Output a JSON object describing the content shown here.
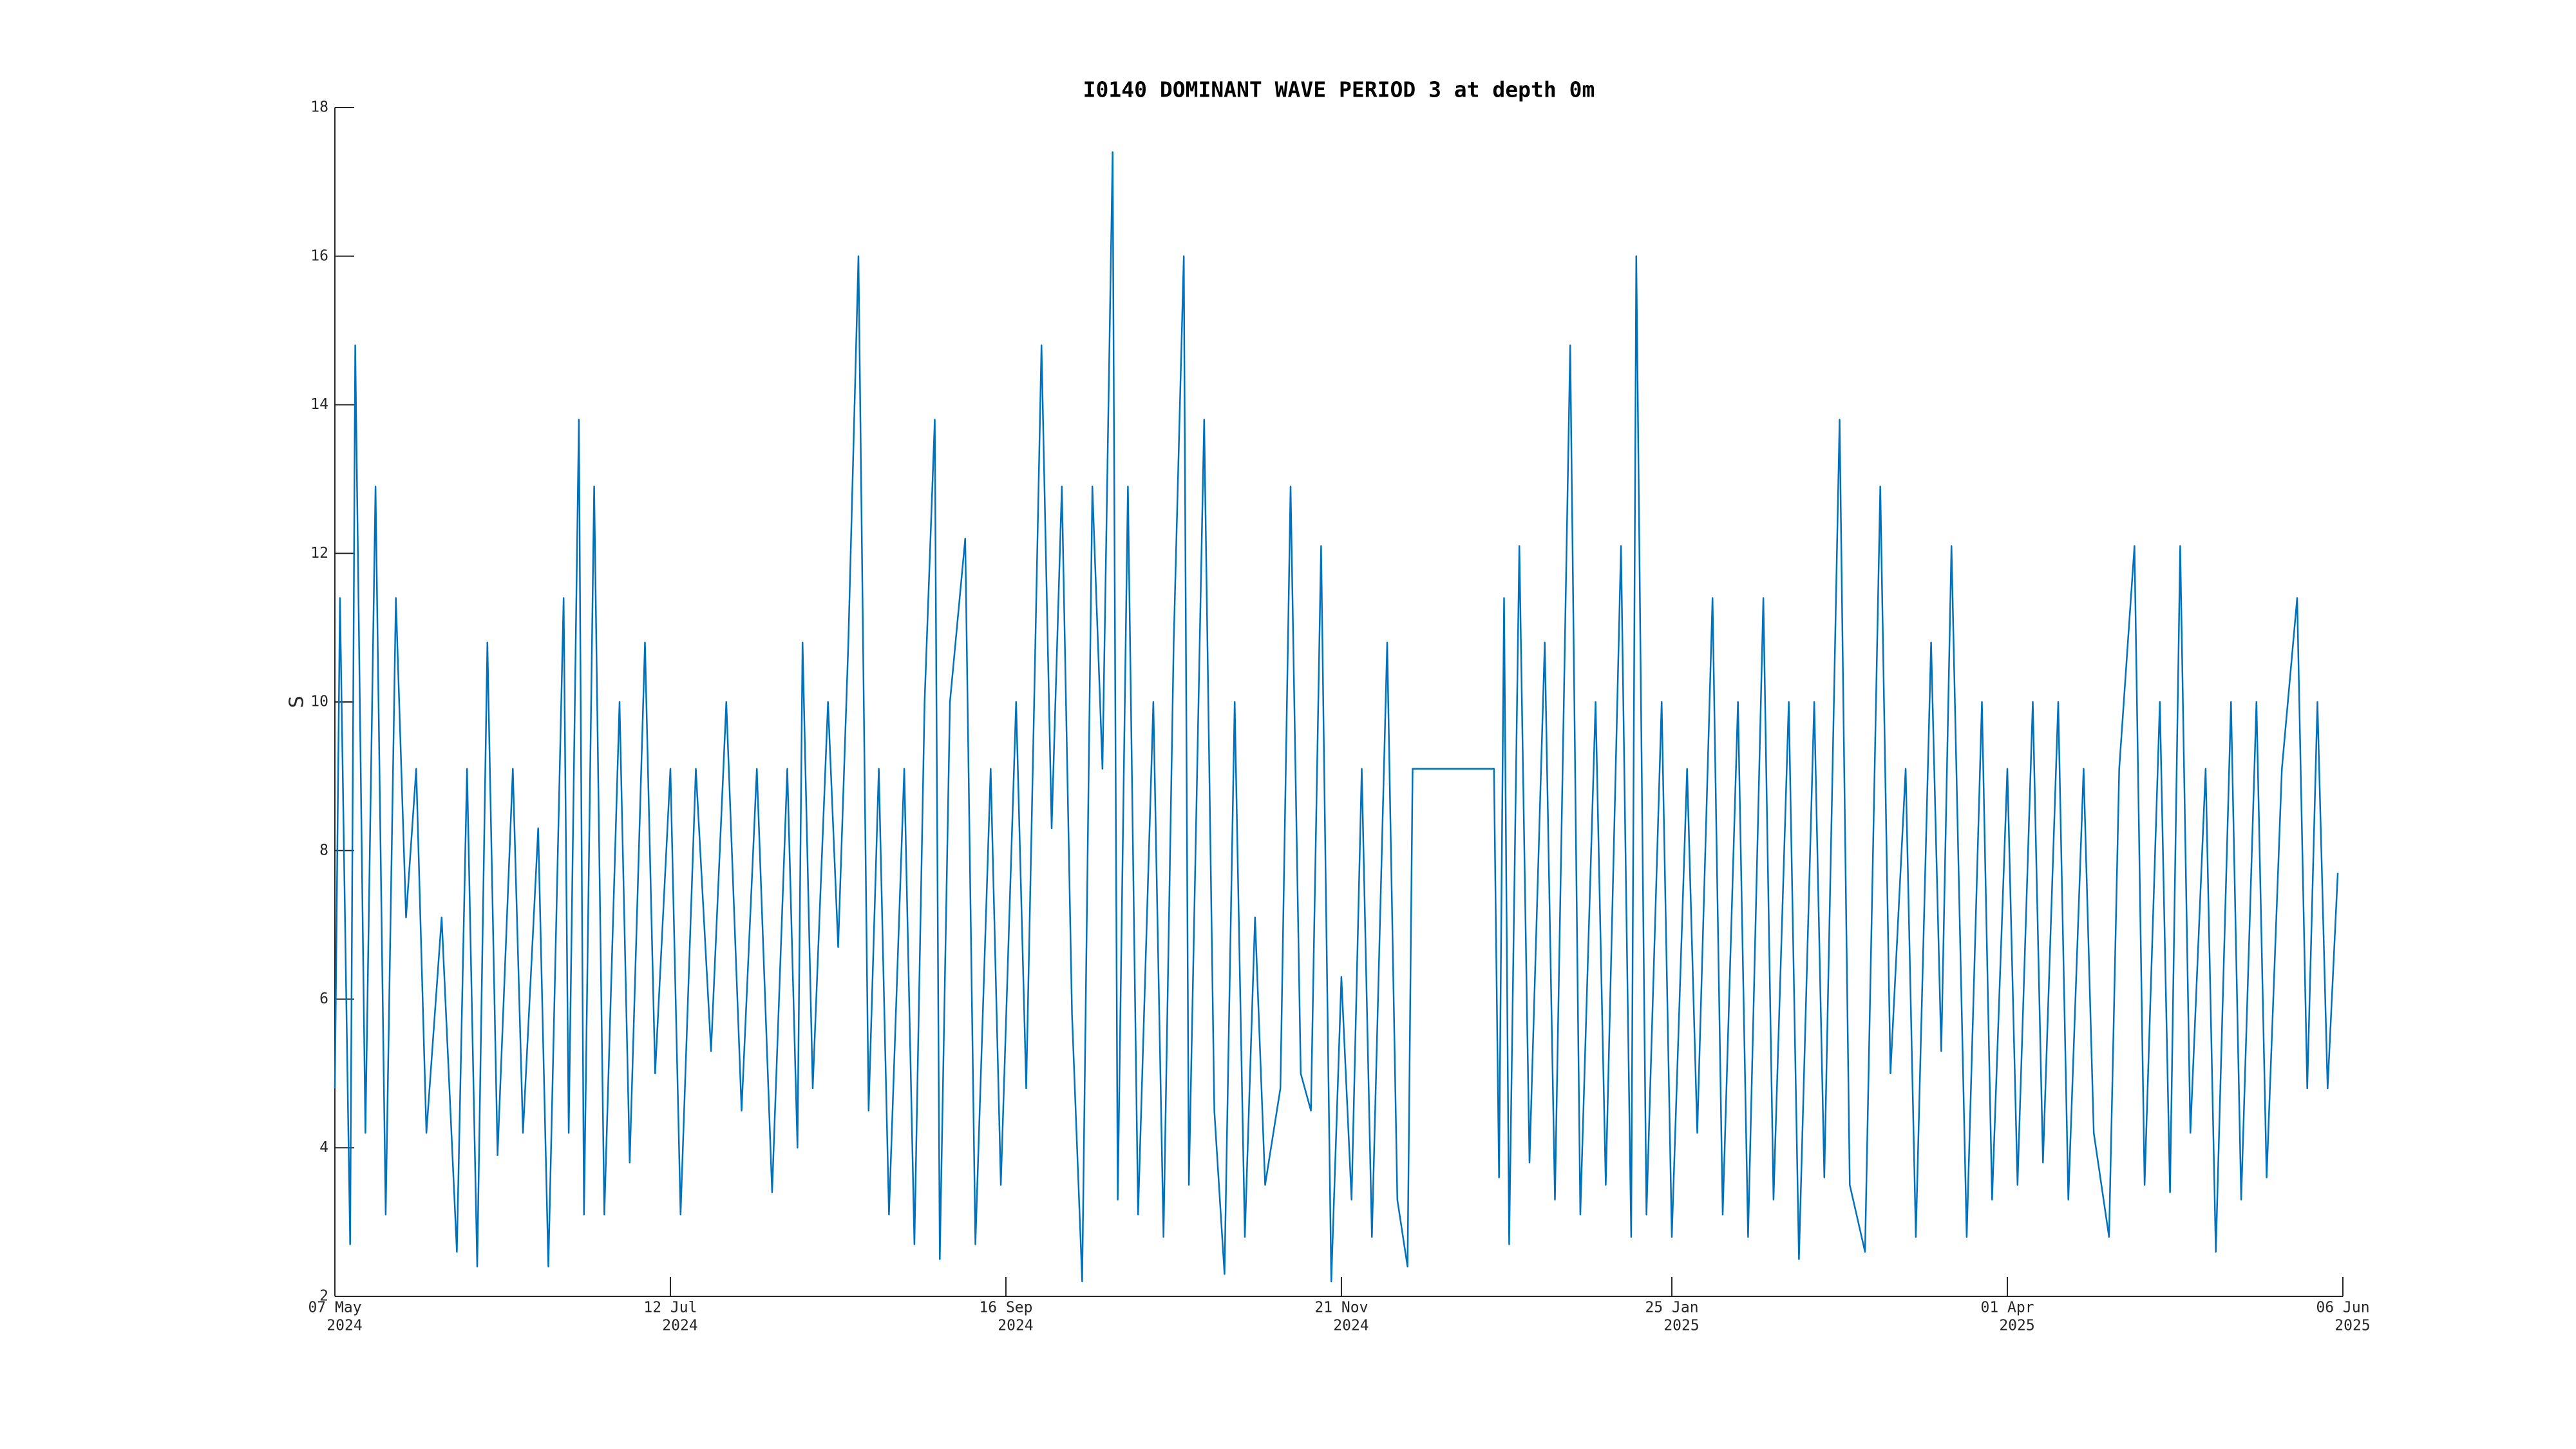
{
  "chart_data": {
    "type": "line",
    "title": "I0140 DOMINANT WAVE PERIOD 3 at depth 0m",
    "y_label": "S",
    "color": "#0072bd",
    "xlim": [
      "2024-05-07",
      "2025-06-06"
    ],
    "xticks": [
      {
        "value": "2024-05-07",
        "label": [
          "07 May",
          "2024"
        ]
      },
      {
        "value": "2024-07-12",
        "label": [
          "12 Jul",
          "2024"
        ]
      },
      {
        "value": "2024-09-16",
        "label": [
          "16 Sep",
          "2024"
        ]
      },
      {
        "value": "2024-11-21",
        "label": [
          "21 Nov",
          "2024"
        ]
      },
      {
        "value": "2025-01-25",
        "label": [
          "25 Jan",
          "2025"
        ]
      },
      {
        "value": "2025-04-01",
        "label": [
          "01 Apr",
          "2025"
        ]
      },
      {
        "value": "2025-06-06",
        "label": [
          "06 Jun",
          "2025"
        ]
      }
    ],
    "ylim": [
      2,
      18
    ],
    "yticks": [
      2,
      4,
      6,
      8,
      10,
      12,
      14,
      16,
      18
    ],
    "grid": false,
    "x": [
      "2024-05-07",
      "2024-05-08",
      "2024-05-10",
      "2024-05-11",
      "2024-05-13",
      "2024-05-15",
      "2024-05-17",
      "2024-05-19",
      "2024-05-21",
      "2024-05-23",
      "2024-05-25",
      "2024-05-28",
      "2024-05-31",
      "2024-06-02",
      "2024-06-04",
      "2024-06-06",
      "2024-06-08",
      "2024-06-11",
      "2024-06-13",
      "2024-06-16",
      "2024-06-18",
      "2024-06-21",
      "2024-06-22",
      "2024-06-24",
      "2024-06-25",
      "2024-06-27",
      "2024-06-29",
      "2024-07-02",
      "2024-07-04",
      "2024-07-07",
      "2024-07-09",
      "2024-07-12",
      "2024-07-14",
      "2024-07-17",
      "2024-07-20",
      "2024-07-23",
      "2024-07-26",
      "2024-07-29",
      "2024-08-01",
      "2024-08-04",
      "2024-08-06",
      "2024-08-07",
      "2024-08-09",
      "2024-08-12",
      "2024-08-14",
      "2024-08-16",
      "2024-08-18",
      "2024-08-20",
      "2024-08-22",
      "2024-08-24",
      "2024-08-27",
      "2024-08-29",
      "2024-08-31",
      "2024-09-02",
      "2024-09-03",
      "2024-09-05",
      "2024-09-08",
      "2024-09-10",
      "2024-09-13",
      "2024-09-15",
      "2024-09-18",
      "2024-09-20",
      "2024-09-23",
      "2024-09-25",
      "2024-09-27",
      "2024-09-29",
      "2024-10-01",
      "2024-10-03",
      "2024-10-05",
      "2024-10-07",
      "2024-10-08",
      "2024-10-10",
      "2024-10-12",
      "2024-10-15",
      "2024-10-17",
      "2024-10-19",
      "2024-10-21",
      "2024-10-22",
      "2024-10-25",
      "2024-10-27",
      "2024-10-29",
      "2024-10-31",
      "2024-11-02",
      "2024-11-04",
      "2024-11-06",
      "2024-11-09",
      "2024-11-11",
      "2024-11-13",
      "2024-11-15",
      "2024-11-17",
      "2024-11-19",
      "2024-11-21",
      "2024-11-23",
      "2024-11-25",
      "2024-11-27",
      "2024-11-30",
      "2024-12-02",
      "2024-12-04",
      "2024-12-05",
      "2024-12-21",
      "2024-12-22",
      "2024-12-23",
      "2024-12-24",
      "2024-12-26",
      "2024-12-28",
      "2024-12-31",
      "2025-01-02",
      "2025-01-05",
      "2025-01-07",
      "2025-01-10",
      "2025-01-12",
      "2025-01-15",
      "2025-01-17",
      "2025-01-18",
      "2025-01-20",
      "2025-01-23",
      "2025-01-25",
      "2025-01-28",
      "2025-01-30",
      "2025-02-02",
      "2025-02-04",
      "2025-02-07",
      "2025-02-09",
      "2025-02-12",
      "2025-02-14",
      "2025-02-17",
      "2025-02-19",
      "2025-02-22",
      "2025-02-24",
      "2025-02-27",
      "2025-03-01",
      "2025-03-04",
      "2025-03-07",
      "2025-03-09",
      "2025-03-12",
      "2025-03-14",
      "2025-03-17",
      "2025-03-19",
      "2025-03-21",
      "2025-03-24",
      "2025-03-27",
      "2025-03-29",
      "2025-04-01",
      "2025-04-03",
      "2025-04-06",
      "2025-04-08",
      "2025-04-11",
      "2025-04-13",
      "2025-04-16",
      "2025-04-18",
      "2025-04-21",
      "2025-04-23",
      "2025-04-26",
      "2025-04-28",
      "2025-05-01",
      "2025-05-03",
      "2025-05-05",
      "2025-05-07",
      "2025-05-10",
      "2025-05-12",
      "2025-05-15",
      "2025-05-17",
      "2025-05-20",
      "2025-05-22",
      "2025-05-25",
      "2025-05-28",
      "2025-05-30",
      "2025-06-01",
      "2025-06-03",
      "2025-06-05"
    ],
    "values": [
      4.8,
      11.4,
      2.7,
      14.8,
      4.2,
      12.9,
      3.1,
      11.4,
      7.1,
      9.1,
      4.2,
      7.1,
      2.6,
      9.1,
      2.4,
      10.8,
      3.9,
      9.1,
      4.2,
      8.3,
      2.4,
      11.4,
      4.2,
      13.8,
      3.1,
      12.9,
      3.1,
      10.0,
      3.8,
      10.8,
      5.0,
      9.1,
      3.1,
      9.1,
      5.3,
      10.0,
      4.5,
      9.1,
      3.4,
      9.1,
      4.0,
      10.8,
      4.8,
      10.0,
      6.7,
      10.8,
      16.0,
      4.5,
      9.1,
      3.1,
      9.1,
      2.7,
      10.0,
      13.8,
      2.5,
      10.0,
      12.2,
      2.7,
      9.1,
      3.5,
      10.0,
      4.8,
      14.8,
      8.3,
      12.9,
      5.8,
      2.2,
      12.9,
      9.1,
      17.4,
      3.3,
      12.9,
      3.1,
      10.0,
      2.8,
      10.8,
      16.0,
      3.5,
      13.8,
      4.5,
      2.3,
      10.0,
      2.8,
      7.1,
      3.5,
      4.8,
      12.9,
      5.0,
      4.5,
      12.1,
      2.2,
      6.3,
      3.3,
      9.1,
      2.8,
      10.8,
      3.3,
      2.4,
      9.1,
      9.1,
      3.6,
      11.4,
      2.7,
      12.1,
      3.8,
      10.8,
      3.3,
      14.8,
      3.1,
      10.0,
      3.5,
      12.1,
      2.8,
      16.0,
      3.1,
      10.0,
      2.8,
      9.1,
      4.2,
      11.4,
      3.1,
      10.0,
      2.8,
      11.4,
      3.3,
      10.0,
      2.5,
      10.0,
      3.6,
      13.8,
      3.5,
      2.6,
      12.9,
      5.0,
      9.1,
      2.8,
      10.8,
      5.3,
      12.1,
      2.8,
      10.0,
      3.3,
      9.1,
      3.5,
      10.0,
      3.8,
      10.0,
      3.3,
      9.1,
      4.2,
      2.8,
      9.1,
      12.1,
      3.5,
      10.0,
      3.4,
      12.1,
      4.2,
      9.1,
      2.6,
      10.0,
      3.3,
      10.0,
      3.6,
      9.1,
      11.4,
      4.8,
      10.0,
      4.8,
      7.7
    ]
  }
}
